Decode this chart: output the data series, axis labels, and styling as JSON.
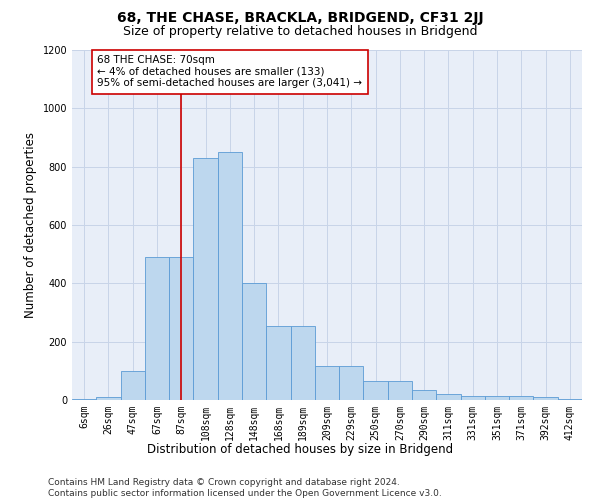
{
  "title": "68, THE CHASE, BRACKLA, BRIDGEND, CF31 2JJ",
  "subtitle": "Size of property relative to detached houses in Bridgend",
  "xlabel": "Distribution of detached houses by size in Bridgend",
  "ylabel": "Number of detached properties",
  "bar_labels": [
    "6sqm",
    "26sqm",
    "47sqm",
    "67sqm",
    "87sqm",
    "108sqm",
    "128sqm",
    "148sqm",
    "168sqm",
    "189sqm",
    "209sqm",
    "229sqm",
    "250sqm",
    "270sqm",
    "290sqm",
    "311sqm",
    "331sqm",
    "351sqm",
    "371sqm",
    "392sqm",
    "412sqm"
  ],
  "bar_values": [
    5,
    12,
    100,
    490,
    490,
    830,
    850,
    400,
    255,
    255,
    115,
    115,
    65,
    65,
    33,
    22,
    15,
    15,
    13,
    10,
    5
  ],
  "bar_color": "#bdd7ee",
  "bar_edge_color": "#5b9bd5",
  "property_line_x": 4.0,
  "annotation_text": "68 THE CHASE: 70sqm\n← 4% of detached houses are smaller (133)\n95% of semi-detached houses are larger (3,041) →",
  "annotation_box_color": "#ffffff",
  "annotation_box_edge": "#cc0000",
  "vline_color": "#cc0000",
  "ylim": [
    0,
    1200
  ],
  "yticks": [
    0,
    200,
    400,
    600,
    800,
    1000,
    1200
  ],
  "footer": "Contains HM Land Registry data © Crown copyright and database right 2024.\nContains public sector information licensed under the Open Government Licence v3.0.",
  "bg_color": "#ffffff",
  "plot_bg_color": "#e8eef8",
  "grid_color": "#c8d4e8",
  "title_fontsize": 10,
  "subtitle_fontsize": 9,
  "axis_label_fontsize": 8.5,
  "tick_fontsize": 7,
  "annot_fontsize": 7.5,
  "footer_fontsize": 6.5
}
